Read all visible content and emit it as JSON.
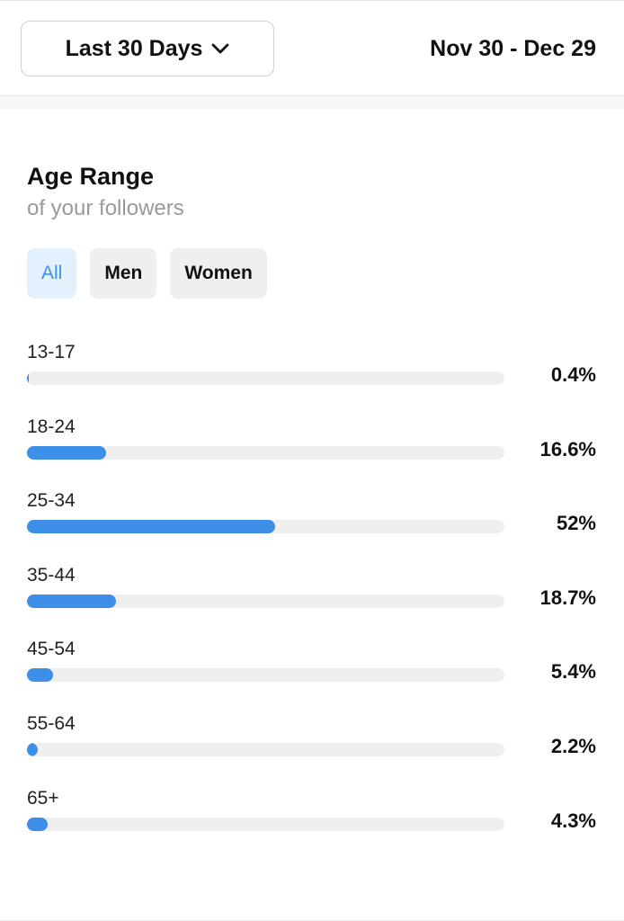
{
  "header": {
    "period_label": "Last 30 Days",
    "period_icon": "chevron-down-icon",
    "date_range": "Nov 30 - Dec 29"
  },
  "section": {
    "title": "Age Range",
    "subtitle": "of your followers"
  },
  "filters": [
    {
      "label": "All",
      "active": true
    },
    {
      "label": "Men",
      "active": false
    },
    {
      "label": "Women",
      "active": false
    }
  ],
  "colors": {
    "accent": "#3d8fe8",
    "track": "#efefef",
    "active_tab_bg": "#e3f0fd"
  },
  "chart_data": {
    "type": "bar",
    "orientation": "horizontal",
    "categories": [
      "13-17",
      "18-24",
      "25-34",
      "35-44",
      "45-54",
      "55-64",
      "65+"
    ],
    "values": [
      0.4,
      16.6,
      52,
      18.7,
      5.4,
      2.2,
      4.3
    ],
    "value_labels": [
      "0.4%",
      "16.6%",
      "52%",
      "18.7%",
      "5.4%",
      "2.2%",
      "4.3%"
    ],
    "xlim": [
      0,
      100
    ],
    "grid": false
  }
}
